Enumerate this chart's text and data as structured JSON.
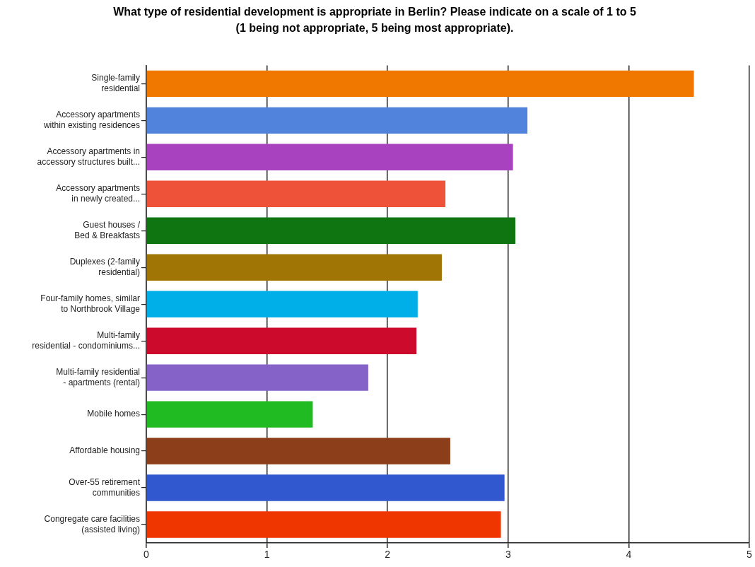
{
  "chart_data": {
    "type": "bar",
    "orientation": "horizontal",
    "title": "What type of residential development is appropriate in Berlin? Please indicate on a scale of 1 to 5\n(1 being not appropriate, 5 being most appropriate).",
    "categories": [
      "Single-family\nresidential",
      "Accessory apartments\nwithin existing residences",
      "Accessory apartments in\naccessory structures built...",
      "Accessory apartments\nin newly created...",
      "Guest houses /\nBed & Breakfasts",
      "Duplexes (2-family\nresidential)",
      "Four-family homes, similar\nto Northbrook Village",
      "Multi-family\nresidential - condominiums...",
      "Multi-family residential\n- apartments (rental)",
      "Mobile homes",
      "Affordable housing",
      "Over-55 retirement\ncommunities",
      "Congregate care facilities\n(assisted living)"
    ],
    "values": [
      4.54,
      3.16,
      3.04,
      2.48,
      3.06,
      2.45,
      2.25,
      2.24,
      1.84,
      1.38,
      2.52,
      2.97,
      2.94
    ],
    "colors": [
      "#f07800",
      "#5283dc",
      "#a842bf",
      "#ee5238",
      "#0f7510",
      "#a07506",
      "#00aee8",
      "#cc0a2c",
      "#8462c8",
      "#20ba22",
      "#8c3e1a",
      "#3258d0",
      "#ef3500"
    ],
    "xlim": [
      0,
      5
    ],
    "xticks": [
      0,
      1,
      2,
      3,
      4,
      5
    ],
    "grid": "x",
    "legend": false
  }
}
